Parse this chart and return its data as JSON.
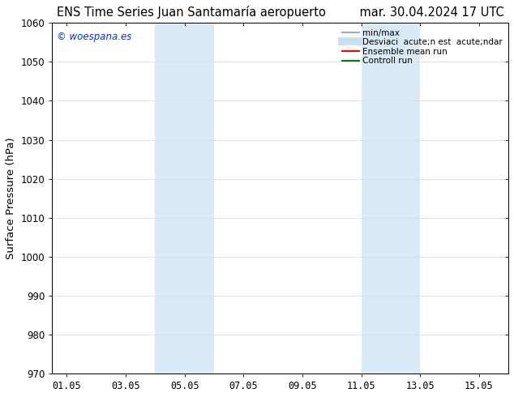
{
  "title": "ENS Time Series Juan Santamaría aeropuerto         mar. 30.04.2024 17 UTC",
  "ylabel": "Surface Pressure (hPa)",
  "ylim": [
    970,
    1060
  ],
  "xlim_start": 0,
  "xlim_end": 15.5,
  "xtick_labels": [
    "01.05",
    "03.05",
    "05.05",
    "07.05",
    "09.05",
    "11.05",
    "13.05",
    "15.05"
  ],
  "xtick_positions": [
    0.5,
    2.5,
    4.5,
    6.5,
    8.5,
    10.5,
    12.5,
    14.5
  ],
  "ytick_values": [
    970,
    980,
    990,
    1000,
    1010,
    1020,
    1030,
    1040,
    1050,
    1060
  ],
  "shaded_bands": [
    {
      "x_start": 3.5,
      "x_end": 5.5
    },
    {
      "x_start": 10.5,
      "x_end": 12.5
    }
  ],
  "shaded_color": "#daeaf7",
  "watermark": "© woespana.es",
  "watermark_color": "#0033cc",
  "legend_entries": [
    {
      "label": "min/max",
      "color": "#aaaaaa",
      "lw": 1.5
    },
    {
      "label": "Desviaci  acute;n est  acute;ndar",
      "color": "#c8dff0",
      "lw": 7
    },
    {
      "label": "Ensemble mean run",
      "color": "#ff0000",
      "lw": 1.5
    },
    {
      "label": "Controll run",
      "color": "#008000",
      "lw": 1.5
    }
  ],
  "bg_color": "#ffffff",
  "grid_color": "#dddddd",
  "title_fontsize": 10.5,
  "tick_fontsize": 8.5,
  "ylabel_fontsize": 9.5,
  "legend_fontsize": 7.5
}
